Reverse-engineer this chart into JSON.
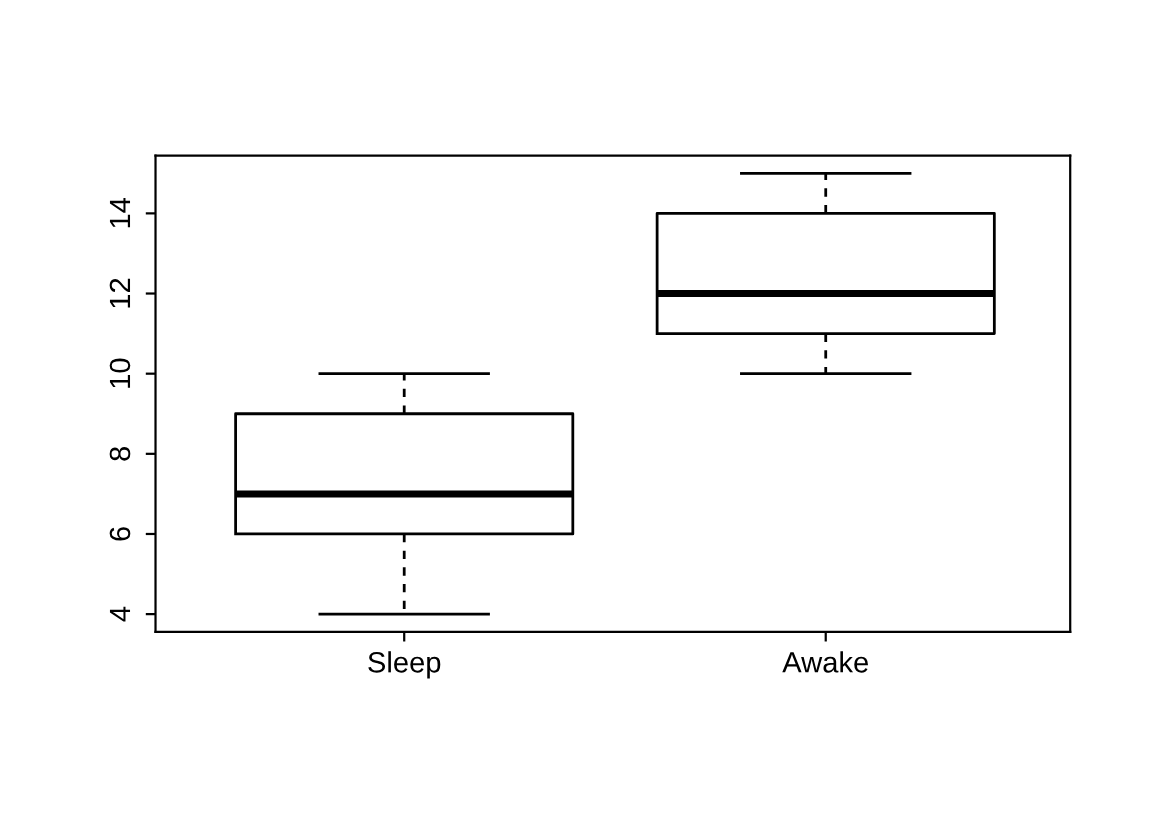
{
  "chart_data": {
    "type": "box",
    "categories": [
      "Sleep",
      "Awake"
    ],
    "boxes": [
      {
        "low": 4,
        "q1": 6,
        "median": 7,
        "q3": 9,
        "high": 10
      },
      {
        "low": 10,
        "q1": 11,
        "median": 12,
        "q3": 14,
        "high": 15
      }
    ],
    "ylim": [
      3.56,
      15.44
    ],
    "yticks": [
      4,
      6,
      8,
      10,
      12,
      14
    ],
    "grid": false
  }
}
